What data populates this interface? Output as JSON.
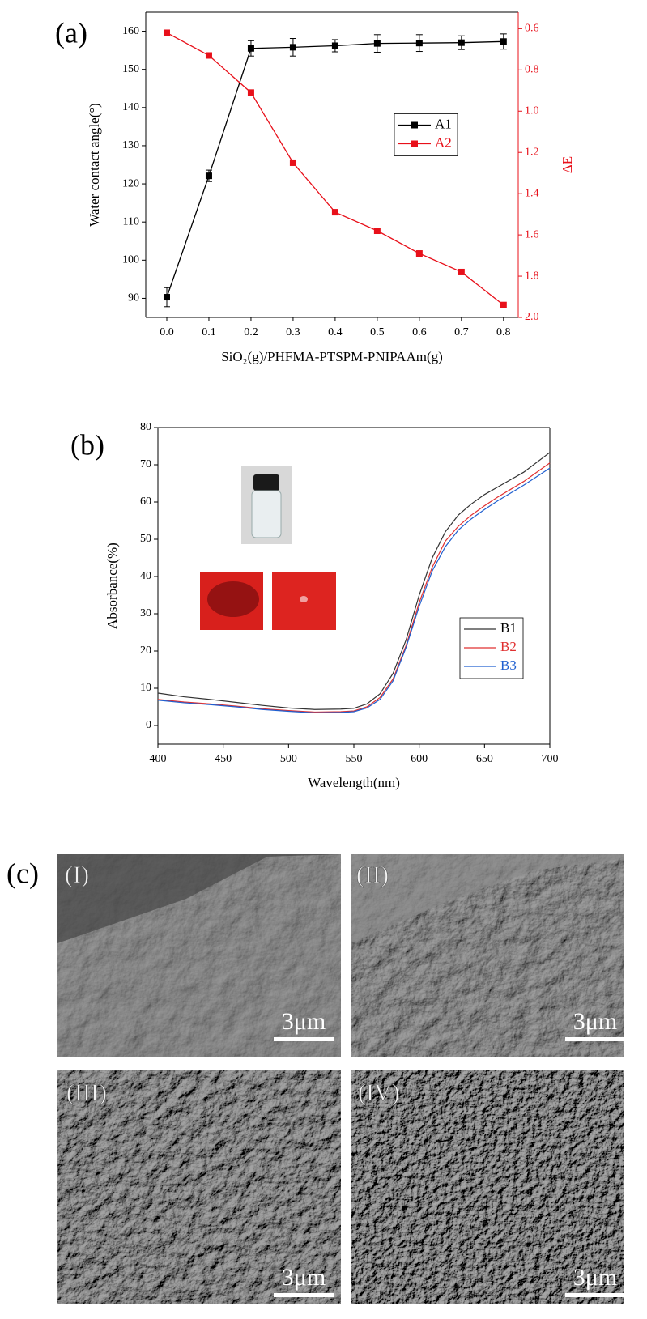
{
  "chart_data": [
    {
      "type": "line",
      "panel_label": "(a)",
      "x_label": "SiO₂(g)/PHFMA-PTSPM-PNIPAAm(g)",
      "y_label": "Water contact angle(°)",
      "y2_label": "ΔE",
      "x": [
        0,
        0.1,
        0.2,
        0.3,
        0.4,
        0.5,
        0.6,
        0.7,
        0.8
      ],
      "xlim": [
        -0.05,
        0.835
      ],
      "xticks": [
        {
          "value": 0,
          "label": "0.0"
        },
        0.1,
        0.2,
        0.3,
        0.4,
        0.5,
        0.6,
        0.7,
        0.8
      ],
      "ylim": [
        85,
        165
      ],
      "yticks": [
        90,
        100,
        110,
        120,
        130,
        140,
        150,
        160
      ],
      "y2lim": [
        2.0,
        0.52
      ],
      "y2ticks": [
        0.6,
        0.8,
        {
          "value": 1,
          "label": "1.0"
        },
        1.2,
        1.4,
        1.6,
        1.8,
        {
          "value": 2,
          "label": "2.0"
        }
      ],
      "legend": "center right",
      "series": [
        {
          "name": "A1",
          "color": "#000000",
          "marker": "square",
          "values": [
            90.3,
            122.1,
            155.5,
            155.8,
            156.2,
            156.8,
            156.9,
            157.0,
            157.3
          ],
          "errors": [
            2.5,
            1.5,
            2.0,
            2.3,
            1.6,
            2.3,
            2.2,
            1.8,
            2.0
          ]
        },
        {
          "name": "A2",
          "color": "#e8101a",
          "marker": "square",
          "axis": "y2",
          "values": [
            0.62,
            0.73,
            0.91,
            1.25,
            1.49,
            1.58,
            1.69,
            1.78,
            1.94
          ]
        }
      ]
    },
    {
      "type": "line",
      "panel_label": "(b)",
      "x_label": "Wavelength(nm)",
      "y_label": "Absorbance(%)",
      "x": [
        400,
        420,
        440,
        460,
        480,
        500,
        520,
        540,
        550,
        560,
        570,
        580,
        590,
        600,
        610,
        620,
        630,
        640,
        650,
        660,
        680,
        700
      ],
      "xlim": [
        400,
        700
      ],
      "xticks": [
        400,
        450,
        500,
        550,
        600,
        650,
        700
      ],
      "ylim": [
        -5,
        80
      ],
      "yticks": [
        0,
        10,
        20,
        30,
        40,
        50,
        60,
        70,
        80
      ],
      "legend": "lower right",
      "series": [
        {
          "name": "B1",
          "color": "#333333",
          "values": [
            8.7,
            7.7,
            7.0,
            6.2,
            5.4,
            4.7,
            4.3,
            4.4,
            4.6,
            5.8,
            8.5,
            14,
            23,
            35,
            45,
            52,
            56.5,
            59.5,
            62,
            64,
            68,
            73.3
          ]
        },
        {
          "name": "B2",
          "color": "#e03030",
          "values": [
            7.0,
            6.3,
            5.8,
            5.2,
            4.5,
            4.0,
            3.6,
            3.7,
            3.9,
            5.0,
            7.5,
            12.5,
            21.5,
            33,
            42.5,
            49.5,
            53.5,
            56.5,
            59,
            61.3,
            65.5,
            70.5
          ]
        },
        {
          "name": "B3",
          "color": "#2060d0",
          "values": [
            6.8,
            6.1,
            5.6,
            5.0,
            4.3,
            3.8,
            3.4,
            3.5,
            3.7,
            4.7,
            7.0,
            12,
            21,
            32,
            41.5,
            48,
            52.5,
            55.5,
            58,
            60.3,
            64.5,
            69.1
          ]
        }
      ]
    }
  ],
  "sem": {
    "label": "(c)",
    "panels": [
      {
        "label": "(I)",
        "scale_bar": "3μm"
      },
      {
        "label": "(II)",
        "scale_bar": "3μm"
      },
      {
        "label": "(III)",
        "scale_bar": "3μm"
      },
      {
        "label": "(IV)",
        "scale_bar": "3μm"
      }
    ]
  }
}
